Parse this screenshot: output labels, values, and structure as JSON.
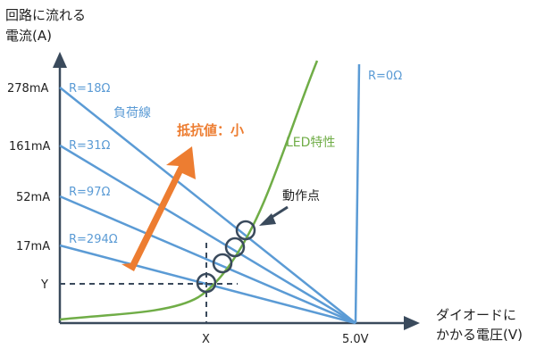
{
  "title": {
    "y_axis_line1": "回路に流れる",
    "y_axis_line2": "電流(A)",
    "x_axis_line1": "ダイオードに",
    "x_axis_line2": "かかる電圧(V)"
  },
  "y_ticks": [
    "278mA",
    "161mA",
    "52mA",
    "17mA",
    "Y"
  ],
  "x_ticks": [
    "X",
    "5.0V"
  ],
  "load_lines": {
    "label": "負荷線",
    "items": [
      {
        "label": "R=18Ω"
      },
      {
        "label": "R=31Ω"
      },
      {
        "label": "R=97Ω"
      },
      {
        "label": "R=294Ω"
      }
    ]
  },
  "r_zero_label": "R=0Ω",
  "led_label": "LED特性",
  "arrow_label": "抵抗値：小",
  "operating_point_label": "動作点",
  "colors": {
    "axis": "#3a4a5c",
    "load_line": "#5b9bd5",
    "led_curve": "#70ad47",
    "arrow": "#ed7d31",
    "marker": "#3a4a5c"
  }
}
